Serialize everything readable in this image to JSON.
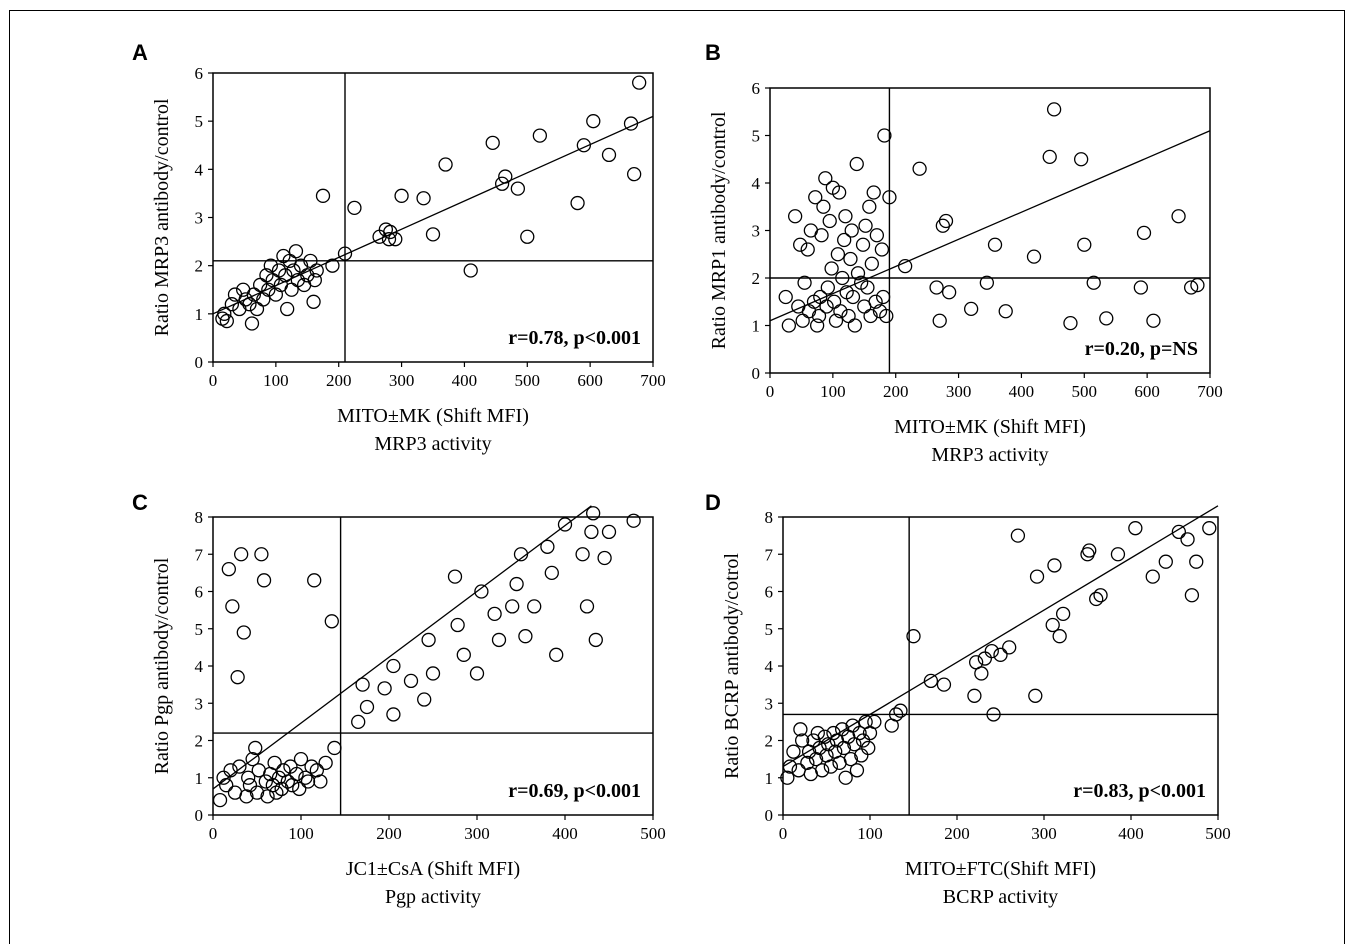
{
  "chart_data": [
    {
      "type": "scatter",
      "panel": "A",
      "xlabel": "MITO±MK (Shift MFI)",
      "xlabel2": "MRP3 activity",
      "ylabel": "Ratio MRP3 antibody/control",
      "xlim": [
        0,
        700
      ],
      "ylim": [
        0,
        6
      ],
      "xticks": [
        0,
        100,
        200,
        300,
        400,
        500,
        600,
        700
      ],
      "yticks": [
        0,
        1,
        2,
        3,
        4,
        5,
        6
      ],
      "vline": 210,
      "hline": 2.1,
      "trend": [
        [
          0,
          1.0
        ],
        [
          700,
          5.1
        ]
      ],
      "annotation": "r=0.78, p<0.001",
      "points": [
        [
          15,
          0.9
        ],
        [
          18,
          1.0
        ],
        [
          22,
          0.85
        ],
        [
          30,
          1.2
        ],
        [
          35,
          1.4
        ],
        [
          42,
          1.1
        ],
        [
          48,
          1.5
        ],
        [
          52,
          1.3
        ],
        [
          58,
          1.2
        ],
        [
          62,
          0.8
        ],
        [
          65,
          1.4
        ],
        [
          70,
          1.1
        ],
        [
          75,
          1.6
        ],
        [
          80,
          1.3
        ],
        [
          85,
          1.8
        ],
        [
          88,
          1.5
        ],
        [
          92,
          2.0
        ],
        [
          95,
          1.7
        ],
        [
          100,
          1.4
        ],
        [
          105,
          1.9
        ],
        [
          108,
          1.6
        ],
        [
          112,
          2.2
        ],
        [
          115,
          1.8
        ],
        [
          118,
          1.1
        ],
        [
          122,
          2.1
        ],
        [
          125,
          1.5
        ],
        [
          128,
          1.9
        ],
        [
          132,
          2.3
        ],
        [
          135,
          1.7
        ],
        [
          140,
          2.0
        ],
        [
          145,
          1.6
        ],
        [
          150,
          1.8
        ],
        [
          155,
          2.1
        ],
        [
          160,
          1.25
        ],
        [
          162,
          1.7
        ],
        [
          165,
          1.9
        ],
        [
          175,
          3.45
        ],
        [
          190,
          2.0
        ],
        [
          210,
          2.25
        ],
        [
          225,
          3.2
        ],
        [
          265,
          2.6
        ],
        [
          275,
          2.75
        ],
        [
          280,
          2.55
        ],
        [
          282,
          2.7
        ],
        [
          290,
          2.55
        ],
        [
          300,
          3.45
        ],
        [
          335,
          3.4
        ],
        [
          350,
          2.65
        ],
        [
          370,
          4.1
        ],
        [
          410,
          1.9
        ],
        [
          445,
          4.55
        ],
        [
          460,
          3.7
        ],
        [
          465,
          3.85
        ],
        [
          485,
          3.6
        ],
        [
          500,
          2.6
        ],
        [
          520,
          4.7
        ],
        [
          580,
          3.3
        ],
        [
          590,
          4.5
        ],
        [
          605,
          5.0
        ],
        [
          630,
          4.3
        ],
        [
          665,
          4.95
        ],
        [
          670,
          3.9
        ],
        [
          678,
          5.8
        ]
      ]
    },
    {
      "type": "scatter",
      "panel": "B",
      "xlabel": "MITO±MK (Shift MFI)",
      "xlabel2": "MRP3 activity",
      "ylabel": "Ratio MRP1 antibody/control",
      "xlim": [
        0,
        700
      ],
      "ylim": [
        0,
        6
      ],
      "xticks": [
        0,
        100,
        200,
        300,
        400,
        500,
        600,
        700
      ],
      "yticks": [
        0,
        1,
        2,
        3,
        4,
        5,
        6
      ],
      "vline": 190,
      "hline": 2.0,
      "trend": [
        [
          0,
          1.1
        ],
        [
          700,
          5.1
        ]
      ],
      "annotation": "r=0.20, p=NS",
      "points": [
        [
          25,
          1.6
        ],
        [
          30,
          1.0
        ],
        [
          40,
          3.3
        ],
        [
          45,
          1.4
        ],
        [
          48,
          2.7
        ],
        [
          52,
          1.1
        ],
        [
          55,
          1.9
        ],
        [
          60,
          2.6
        ],
        [
          62,
          1.3
        ],
        [
          65,
          3.0
        ],
        [
          70,
          1.5
        ],
        [
          72,
          3.7
        ],
        [
          75,
          1.0
        ],
        [
          78,
          1.2
        ],
        [
          80,
          1.6
        ],
        [
          82,
          2.9
        ],
        [
          85,
          3.5
        ],
        [
          88,
          4.1
        ],
        [
          90,
          1.4
        ],
        [
          92,
          1.8
        ],
        [
          95,
          3.2
        ],
        [
          98,
          2.2
        ],
        [
          100,
          3.9
        ],
        [
          102,
          1.5
        ],
        [
          105,
          1.1
        ],
        [
          108,
          2.5
        ],
        [
          110,
          3.8
        ],
        [
          112,
          1.3
        ],
        [
          115,
          2.0
        ],
        [
          118,
          2.8
        ],
        [
          120,
          3.3
        ],
        [
          122,
          1.7
        ],
        [
          125,
          1.2
        ],
        [
          128,
          2.4
        ],
        [
          130,
          3.0
        ],
        [
          132,
          1.6
        ],
        [
          135,
          1.0
        ],
        [
          138,
          4.4
        ],
        [
          140,
          2.1
        ],
        [
          145,
          1.9
        ],
        [
          148,
          2.7
        ],
        [
          150,
          1.4
        ],
        [
          152,
          3.1
        ],
        [
          155,
          1.8
        ],
        [
          158,
          3.5
        ],
        [
          160,
          1.2
        ],
        [
          162,
          2.3
        ],
        [
          165,
          3.8
        ],
        [
          168,
          1.5
        ],
        [
          170,
          2.9
        ],
        [
          175,
          1.3
        ],
        [
          178,
          2.6
        ],
        [
          180,
          1.6
        ],
        [
          182,
          5.0
        ],
        [
          185,
          1.2
        ],
        [
          190,
          3.7
        ],
        [
          215,
          2.25
        ],
        [
          238,
          4.3
        ],
        [
          265,
          1.8
        ],
        [
          270,
          1.1
        ],
        [
          275,
          3.1
        ],
        [
          280,
          3.2
        ],
        [
          285,
          1.7
        ],
        [
          320,
          1.35
        ],
        [
          345,
          1.9
        ],
        [
          358,
          2.7
        ],
        [
          375,
          1.3
        ],
        [
          420,
          2.45
        ],
        [
          445,
          4.55
        ],
        [
          452,
          5.55
        ],
        [
          478,
          1.05
        ],
        [
          495,
          4.5
        ],
        [
          500,
          2.7
        ],
        [
          515,
          1.9
        ],
        [
          535,
          1.15
        ],
        [
          590,
          1.8
        ],
        [
          595,
          2.95
        ],
        [
          610,
          1.1
        ],
        [
          650,
          3.3
        ],
        [
          670,
          1.8
        ],
        [
          680,
          1.85
        ]
      ]
    },
    {
      "type": "scatter",
      "panel": "C",
      "xlabel": "JC1±CsA (Shift MFI)",
      "xlabel2": "Pgp activity",
      "ylabel": "Ratio Pgp antibody/control",
      "xlim": [
        0,
        500
      ],
      "ylim": [
        0,
        8
      ],
      "xticks": [
        0,
        100,
        200,
        300,
        400,
        500
      ],
      "yticks": [
        0,
        1,
        2,
        3,
        4,
        5,
        6,
        7,
        8
      ],
      "vline": 145,
      "hline": 2.2,
      "trend": [
        [
          0,
          0.7
        ],
        [
          430,
          8.3
        ]
      ],
      "annotation": "r=0.69, p<0.001",
      "points": [
        [
          8,
          0.4
        ],
        [
          12,
          1.0
        ],
        [
          15,
          0.8
        ],
        [
          18,
          6.6
        ],
        [
          20,
          1.2
        ],
        [
          22,
          5.6
        ],
        [
          25,
          0.6
        ],
        [
          28,
          3.7
        ],
        [
          30,
          1.3
        ],
        [
          32,
          7.0
        ],
        [
          35,
          4.9
        ],
        [
          38,
          0.5
        ],
        [
          40,
          1.0
        ],
        [
          42,
          0.8
        ],
        [
          45,
          1.5
        ],
        [
          48,
          1.8
        ],
        [
          50,
          0.6
        ],
        [
          52,
          1.2
        ],
        [
          55,
          7.0
        ],
        [
          58,
          6.3
        ],
        [
          60,
          0.9
        ],
        [
          62,
          0.5
        ],
        [
          65,
          1.1
        ],
        [
          68,
          0.8
        ],
        [
          70,
          1.4
        ],
        [
          72,
          0.6
        ],
        [
          75,
          1.0
        ],
        [
          78,
          0.7
        ],
        [
          80,
          1.2
        ],
        [
          85,
          0.9
        ],
        [
          88,
          1.3
        ],
        [
          90,
          0.8
        ],
        [
          95,
          1.1
        ],
        [
          98,
          0.7
        ],
        [
          100,
          1.5
        ],
        [
          105,
          1.0
        ],
        [
          108,
          0.9
        ],
        [
          112,
          1.3
        ],
        [
          115,
          6.3
        ],
        [
          118,
          1.2
        ],
        [
          122,
          0.9
        ],
        [
          128,
          1.4
        ],
        [
          135,
          5.2
        ],
        [
          138,
          1.8
        ],
        [
          165,
          2.5
        ],
        [
          170,
          3.5
        ],
        [
          175,
          2.9
        ],
        [
          195,
          3.4
        ],
        [
          205,
          4.0
        ],
        [
          205,
          2.7
        ],
        [
          225,
          3.6
        ],
        [
          240,
          3.1
        ],
        [
          245,
          4.7
        ],
        [
          250,
          3.8
        ],
        [
          275,
          6.4
        ],
        [
          278,
          5.1
        ],
        [
          285,
          4.3
        ],
        [
          300,
          3.8
        ],
        [
          305,
          6.0
        ],
        [
          320,
          5.4
        ],
        [
          325,
          4.7
        ],
        [
          340,
          5.6
        ],
        [
          345,
          6.2
        ],
        [
          350,
          7.0
        ],
        [
          355,
          4.8
        ],
        [
          365,
          5.6
        ],
        [
          380,
          7.2
        ],
        [
          385,
          6.5
        ],
        [
          390,
          4.3
        ],
        [
          400,
          7.8
        ],
        [
          420,
          7.0
        ],
        [
          425,
          5.6
        ],
        [
          430,
          7.6
        ],
        [
          432,
          8.1
        ],
        [
          435,
          4.7
        ],
        [
          445,
          6.9
        ],
        [
          450,
          7.6
        ],
        [
          478,
          7.9
        ]
      ]
    },
    {
      "type": "scatter",
      "panel": "D",
      "xlabel": "MITO±FTC(Shift MFI)",
      "xlabel2": "BCRP activity",
      "ylabel": "Ratio BCRP antibody/cotrol",
      "xlim": [
        0,
        500
      ],
      "ylim": [
        0,
        8
      ],
      "xticks": [
        0,
        100,
        200,
        300,
        400,
        500
      ],
      "yticks": [
        0,
        1,
        2,
        3,
        4,
        5,
        6,
        7,
        8
      ],
      "vline": 145,
      "hline": 2.7,
      "trend": [
        [
          0,
          1.3
        ],
        [
          500,
          8.3
        ]
      ],
      "annotation": "r=0.83, p<0.001",
      "points": [
        [
          5,
          1.0
        ],
        [
          8,
          1.3
        ],
        [
          12,
          1.7
        ],
        [
          18,
          1.2
        ],
        [
          20,
          2.3
        ],
        [
          22,
          2.0
        ],
        [
          28,
          1.4
        ],
        [
          30,
          1.7
        ],
        [
          32,
          1.1
        ],
        [
          35,
          2.0
        ],
        [
          38,
          1.5
        ],
        [
          40,
          2.2
        ],
        [
          42,
          1.8
        ],
        [
          45,
          1.2
        ],
        [
          48,
          2.1
        ],
        [
          50,
          1.6
        ],
        [
          52,
          1.9
        ],
        [
          55,
          1.3
        ],
        [
          58,
          2.2
        ],
        [
          60,
          1.7
        ],
        [
          62,
          2.0
        ],
        [
          65,
          1.4
        ],
        [
          68,
          2.3
        ],
        [
          70,
          1.8
        ],
        [
          72,
          1.0
        ],
        [
          75,
          2.1
        ],
        [
          78,
          1.5
        ],
        [
          80,
          2.4
        ],
        [
          82,
          1.9
        ],
        [
          85,
          1.2
        ],
        [
          88,
          2.2
        ],
        [
          90,
          1.6
        ],
        [
          92,
          2.0
        ],
        [
          95,
          2.5
        ],
        [
          98,
          1.8
        ],
        [
          100,
          2.2
        ],
        [
          105,
          2.5
        ],
        [
          125,
          2.4
        ],
        [
          130,
          2.7
        ],
        [
          135,
          2.8
        ],
        [
          150,
          4.8
        ],
        [
          170,
          3.6
        ],
        [
          185,
          3.5
        ],
        [
          220,
          3.2
        ],
        [
          222,
          4.1
        ],
        [
          228,
          3.8
        ],
        [
          232,
          4.2
        ],
        [
          240,
          4.4
        ],
        [
          242,
          2.7
        ],
        [
          250,
          4.3
        ],
        [
          260,
          4.5
        ],
        [
          270,
          7.5
        ],
        [
          290,
          3.2
        ],
        [
          292,
          6.4
        ],
        [
          310,
          5.1
        ],
        [
          312,
          6.7
        ],
        [
          318,
          4.8
        ],
        [
          322,
          5.4
        ],
        [
          350,
          7.0
        ],
        [
          352,
          7.1
        ],
        [
          360,
          5.8
        ],
        [
          365,
          5.9
        ],
        [
          385,
          7.0
        ],
        [
          405,
          7.7
        ],
        [
          425,
          6.4
        ],
        [
          440,
          6.8
        ],
        [
          455,
          7.6
        ],
        [
          465,
          7.4
        ],
        [
          470,
          5.9
        ],
        [
          475,
          6.8
        ],
        [
          490,
          7.7
        ]
      ]
    }
  ]
}
